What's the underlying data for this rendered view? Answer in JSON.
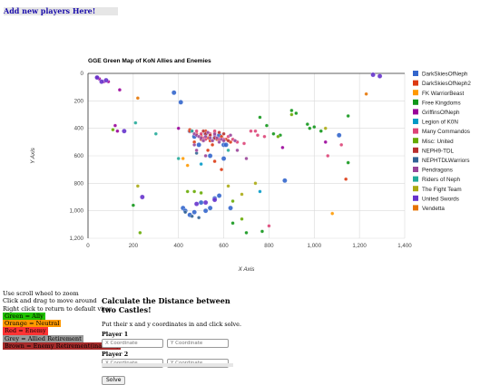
{
  "header": {
    "add_link": "Add new players Here!"
  },
  "chart_data": {
    "type": "scatter",
    "title": "GGE Green Map of KoN Allies and Enemies",
    "xlabel": "X Axis",
    "ylabel": "Y Axis",
    "xlim": [
      0,
      1400
    ],
    "ylim": [
      1200,
      0
    ],
    "x_ticks": [
      0,
      200,
      400,
      600,
      800,
      1000,
      1200,
      1400
    ],
    "y_ticks": [
      0,
      200,
      400,
      600,
      800,
      1000,
      1200
    ],
    "x_tick_labels": [
      "0",
      "200",
      "400",
      "600",
      "800",
      "1,000",
      "1,200",
      "1,400"
    ],
    "y_tick_labels": [
      "0",
      "200",
      "400",
      "600",
      "800",
      "1,000",
      "1,200"
    ],
    "legend_position": "right",
    "series": [
      {
        "name": "DarkSkiesOfNeph",
        "color": "#3366cc",
        "points": [
          [
            380,
            140
          ],
          [
            410,
            210
          ],
          [
            450,
            420
          ],
          [
            470,
            460
          ],
          [
            490,
            520
          ],
          [
            520,
            440
          ],
          [
            540,
            600
          ],
          [
            560,
            470
          ],
          [
            580,
            450
          ],
          [
            600,
            520
          ],
          [
            420,
            980
          ],
          [
            430,
            1000
          ],
          [
            450,
            1030
          ],
          [
            470,
            1010
          ],
          [
            500,
            940
          ],
          [
            520,
            1000
          ],
          [
            540,
            980
          ],
          [
            560,
            910
          ],
          [
            580,
            890
          ],
          [
            600,
            620
          ],
          [
            610,
            520
          ],
          [
            870,
            780
          ],
          [
            1110,
            450
          ],
          [
            630,
            980
          ]
        ]
      },
      {
        "name": "DarkSkiesOfNeph2",
        "color": "#dc3912",
        "points": [
          [
            450,
            410
          ],
          [
            480,
            440
          ],
          [
            500,
            450
          ],
          [
            520,
            420
          ],
          [
            530,
            470
          ],
          [
            540,
            490
          ],
          [
            560,
            430
          ],
          [
            570,
            480
          ],
          [
            590,
            460
          ],
          [
            610,
            480
          ],
          [
            630,
            500
          ],
          [
            550,
            520
          ],
          [
            530,
            560
          ],
          [
            560,
            640
          ],
          [
            590,
            700
          ],
          [
            1140,
            770
          ],
          [
            450,
            420
          ],
          [
            470,
            500
          ]
        ]
      },
      {
        "name": "FK WarriorBeast",
        "color": "#ff9900",
        "points": [
          [
            420,
            620
          ],
          [
            1080,
            1020
          ],
          [
            440,
            670
          ]
        ]
      },
      {
        "name": "Free Kingdoms",
        "color": "#109618",
        "points": [
          [
            900,
            270
          ],
          [
            920,
            290
          ],
          [
            970,
            370
          ],
          [
            980,
            400
          ],
          [
            1000,
            390
          ],
          [
            1030,
            420
          ],
          [
            760,
            320
          ],
          [
            790,
            380
          ],
          [
            820,
            440
          ],
          [
            850,
            450
          ],
          [
            640,
            1090
          ],
          [
            700,
            1160
          ],
          [
            200,
            960
          ],
          [
            1150,
            650
          ],
          [
            1150,
            310
          ],
          [
            770,
            1150
          ]
        ]
      },
      {
        "name": "GriffinsOfNeph",
        "color": "#990099",
        "points": [
          [
            40,
            30
          ],
          [
            50,
            40
          ],
          [
            70,
            60
          ],
          [
            90,
            60
          ],
          [
            140,
            120
          ],
          [
            120,
            380
          ],
          [
            130,
            420
          ],
          [
            860,
            540
          ],
          [
            400,
            400
          ],
          [
            1050,
            500
          ]
        ]
      },
      {
        "name": "Legion of K0N",
        "color": "#0099c6",
        "points": [
          [
            760,
            860
          ],
          [
            500,
            660
          ]
        ]
      },
      {
        "name": "Many Commandos",
        "color": "#dd4477",
        "points": [
          [
            480,
            420
          ],
          [
            500,
            440
          ],
          [
            510,
            470
          ],
          [
            520,
            480
          ],
          [
            540,
            440
          ],
          [
            560,
            420
          ],
          [
            580,
            480
          ],
          [
            600,
            480
          ],
          [
            620,
            460
          ],
          [
            640,
            480
          ],
          [
            660,
            500
          ],
          [
            690,
            510
          ],
          [
            720,
            420
          ],
          [
            740,
            420
          ],
          [
            750,
            450
          ],
          [
            780,
            460
          ],
          [
            800,
            1110
          ],
          [
            1120,
            520
          ],
          [
            1060,
            600
          ]
        ]
      },
      {
        "name": "Misc: United",
        "color": "#66aa00",
        "points": [
          [
            110,
            410
          ],
          [
            230,
            1160
          ],
          [
            840,
            460
          ],
          [
            900,
            300
          ],
          [
            440,
            860
          ],
          [
            470,
            860
          ],
          [
            500,
            870
          ],
          [
            640,
            930
          ],
          [
            680,
            1060
          ]
        ]
      },
      {
        "name": "NEPH9-TDL",
        "color": "#b82e2e",
        "points": [
          [
            510,
            420
          ],
          [
            520,
            440
          ],
          [
            540,
            450
          ],
          [
            560,
            470
          ],
          [
            580,
            430
          ],
          [
            600,
            440
          ],
          [
            620,
            490
          ],
          [
            500,
            480
          ]
        ]
      },
      {
        "name": "NEPHTDLWarriors",
        "color": "#316395",
        "points": [
          [
            430,
            1010
          ],
          [
            460,
            1040
          ],
          [
            490,
            1050
          ],
          [
            480,
            580
          ]
        ]
      },
      {
        "name": "Pendragons",
        "color": "#994499",
        "points": [
          [
            460,
            420
          ],
          [
            470,
            440
          ],
          [
            480,
            450
          ],
          [
            490,
            460
          ],
          [
            500,
            470
          ],
          [
            510,
            490
          ],
          [
            520,
            460
          ],
          [
            530,
            430
          ],
          [
            540,
            470
          ],
          [
            550,
            490
          ],
          [
            560,
            450
          ],
          [
            570,
            470
          ],
          [
            580,
            500
          ],
          [
            590,
            480
          ],
          [
            600,
            490
          ],
          [
            560,
            440
          ],
          [
            630,
            450
          ],
          [
            650,
            490
          ],
          [
            660,
            560
          ],
          [
            700,
            620
          ],
          [
            470,
            520
          ],
          [
            480,
            560
          ],
          [
            520,
            600
          ]
        ]
      },
      {
        "name": "Riders of Neph",
        "color": "#22aa99",
        "points": [
          [
            210,
            360
          ],
          [
            300,
            440
          ],
          [
            400,
            620
          ],
          [
            460,
            420
          ],
          [
            620,
            560
          ]
        ]
      },
      {
        "name": "The Fight Team",
        "color": "#aaaa11",
        "points": [
          [
            220,
            820
          ],
          [
            620,
            820
          ],
          [
            680,
            880
          ],
          [
            740,
            800
          ],
          [
            1050,
            400
          ]
        ]
      },
      {
        "name": "United Swords",
        "color": "#6633cc",
        "points": [
          [
            40,
            30
          ],
          [
            60,
            60
          ],
          [
            80,
            50
          ],
          [
            160,
            420
          ],
          [
            240,
            900
          ],
          [
            480,
            950
          ],
          [
            520,
            940
          ],
          [
            560,
            920
          ],
          [
            1260,
            10
          ],
          [
            1290,
            20
          ]
        ]
      },
      {
        "name": "Vendetta",
        "color": "#e67300",
        "points": [
          [
            220,
            180
          ],
          [
            1230,
            150
          ]
        ]
      }
    ],
    "bubble_sizes": {
      "DarkSkiesOfNeph": 3,
      "United Swords": 5
    }
  },
  "instructions": {
    "lines": [
      "Use scroll wheel to zoom",
      "Click and drag to move around",
      "Right click to return to default view"
    ],
    "legend_items": [
      {
        "label": "Green = Ally",
        "color": "#21c200"
      },
      {
        "label": "Orange = Neutral",
        "color": "#ff9900"
      },
      {
        "label": "Red = Enemy",
        "color": "#ff3333"
      },
      {
        "label": "Grey = Allied Retirement",
        "color": "#999999"
      },
      {
        "label": "Brown = Enemy Retirement(inactive)",
        "color": "#a52a2a"
      }
    ]
  },
  "calculator": {
    "title": "Calculate the Distance between two Castles!",
    "description": "Put their x and y coordinates in and click solve.",
    "player1_label": "Player 1",
    "player2_label": "Player 2",
    "x_placeholder": "X Coordinate",
    "y_placeholder": "Y Coordinate",
    "solve_label": "Solve"
  }
}
